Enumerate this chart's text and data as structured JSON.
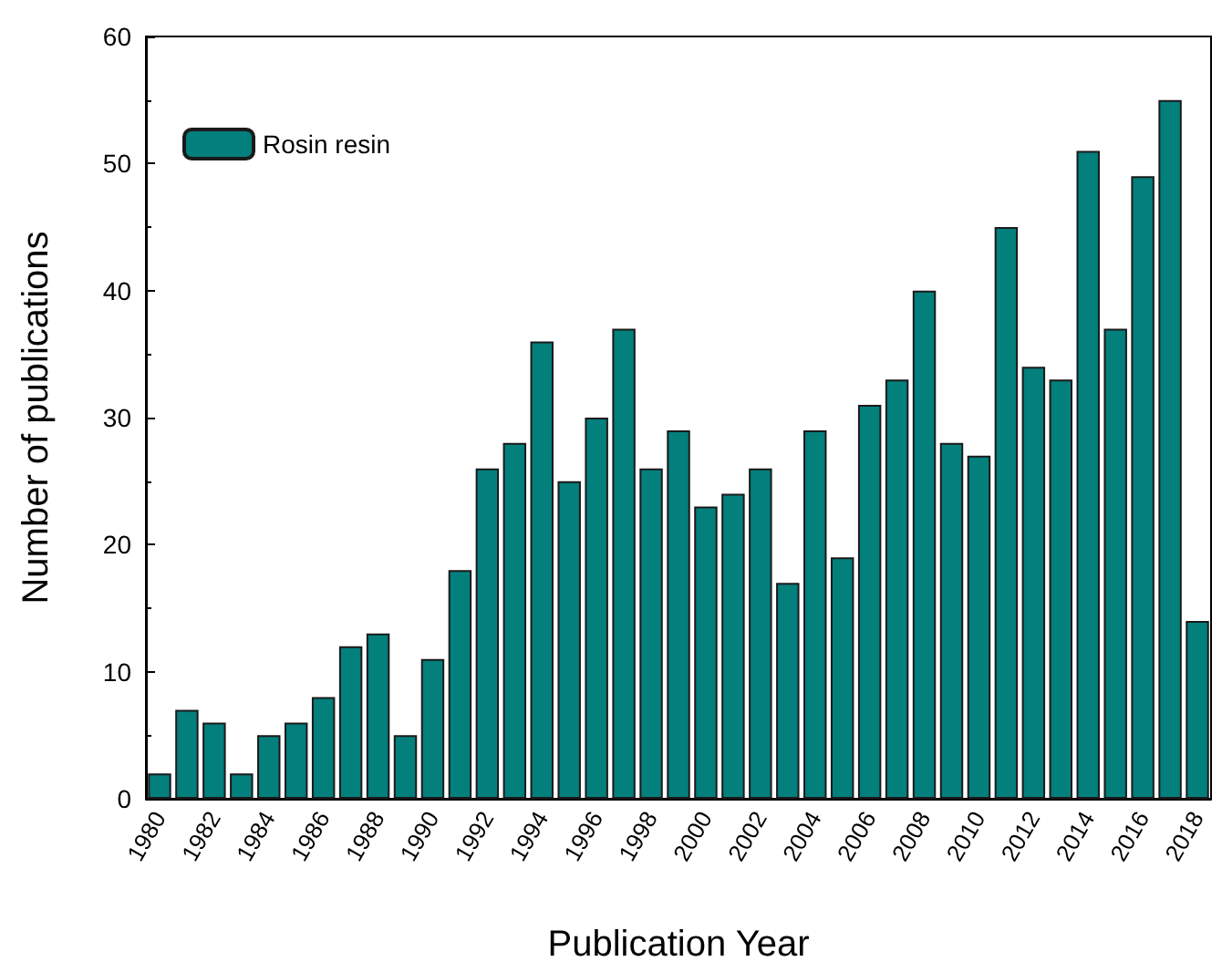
{
  "chart_data": {
    "type": "bar",
    "xlabel": "Publication Year",
    "ylabel": "Number of publications",
    "categories": [
      "1980",
      null,
      "1982",
      null,
      "1984",
      null,
      "1986",
      null,
      "1988",
      null,
      "1990",
      null,
      "1992",
      null,
      "1994",
      null,
      "1996",
      null,
      "1998",
      null,
      "2000",
      null,
      "2002",
      null,
      "2004",
      null,
      "2006",
      null,
      "2008",
      null,
      "2010",
      null,
      "2012",
      null,
      "2014",
      null,
      "2016",
      null,
      "2018"
    ],
    "series": [
      {
        "name": "Rosin resin",
        "color": "#037f7c",
        "values": [
          2,
          7,
          6,
          2,
          5,
          6,
          8,
          12,
          13,
          5,
          11,
          18,
          26,
          28,
          36,
          25,
          30,
          37,
          26,
          29,
          23,
          24,
          26,
          17,
          29,
          19,
          31,
          33,
          40,
          28,
          27,
          45,
          34,
          33,
          51,
          37,
          49,
          55,
          14
        ]
      }
    ],
    "ylim": [
      0,
      60
    ],
    "yticks": [
      0,
      10,
      20,
      30,
      40,
      50,
      60
    ],
    "grid": false,
    "legend": "top left"
  }
}
